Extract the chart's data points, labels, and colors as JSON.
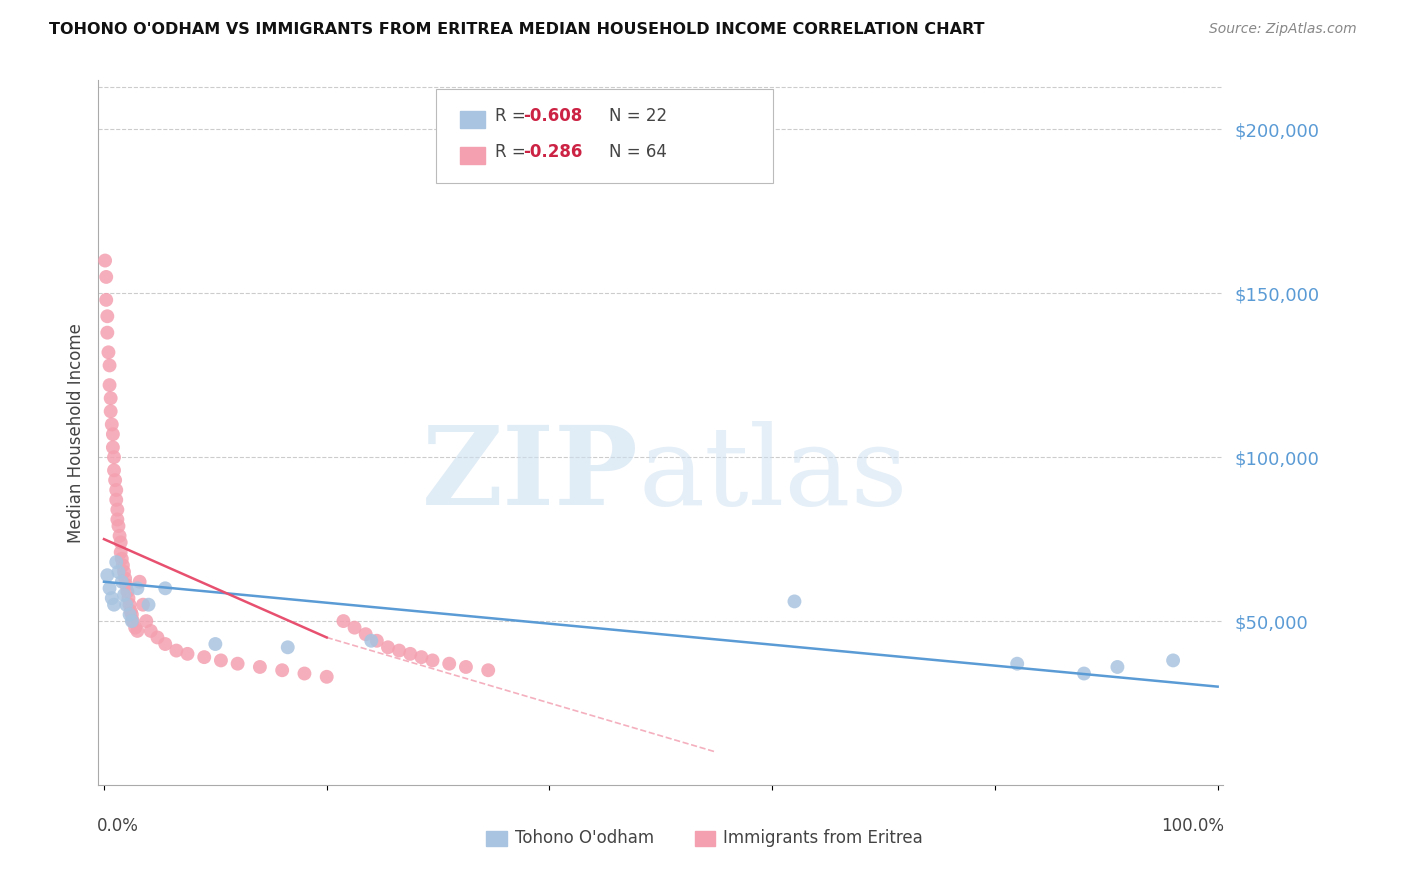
{
  "title": "TOHONO O'ODHAM VS IMMIGRANTS FROM ERITREA MEDIAN HOUSEHOLD INCOME CORRELATION CHART",
  "source": "Source: ZipAtlas.com",
  "ylabel": "Median Household Income",
  "watermark_zip": "ZIP",
  "watermark_atlas": "atlas",
  "series1_label": "Tohono O'odham",
  "series1_color": "#a8c4e0",
  "series1_line_color": "#5b9bd5",
  "series1_R": "-0.608",
  "series1_N": "22",
  "series2_label": "Immigrants from Eritrea",
  "series2_color": "#f4a0b0",
  "series2_line_color": "#e85070",
  "series2_R": "-0.286",
  "series2_N": "64",
  "legend_R_color": "#cc2244",
  "legend_N_color": "#333333",
  "yticks": [
    0,
    50000,
    100000,
    150000,
    200000
  ],
  "ylim": [
    0,
    215000
  ],
  "xlim": [
    -0.005,
    1.005
  ],
  "grid_color": "#cccccc",
  "background_color": "#ffffff",
  "series1_x": [
    0.003,
    0.005,
    0.007,
    0.009,
    0.011,
    0.013,
    0.016,
    0.018,
    0.02,
    0.023,
    0.025,
    0.03,
    0.04,
    0.055,
    0.1,
    0.165,
    0.24,
    0.62,
    0.82,
    0.88,
    0.91,
    0.96
  ],
  "series1_y": [
    64000,
    60000,
    57000,
    55000,
    68000,
    65000,
    62000,
    58000,
    55000,
    52000,
    50000,
    60000,
    55000,
    60000,
    43000,
    42000,
    44000,
    56000,
    37000,
    34000,
    36000,
    38000
  ],
  "series2_x": [
    0.001,
    0.002,
    0.002,
    0.003,
    0.003,
    0.004,
    0.005,
    0.005,
    0.006,
    0.006,
    0.007,
    0.008,
    0.008,
    0.009,
    0.009,
    0.01,
    0.011,
    0.011,
    0.012,
    0.012,
    0.013,
    0.014,
    0.015,
    0.015,
    0.016,
    0.017,
    0.018,
    0.019,
    0.02,
    0.021,
    0.022,
    0.023,
    0.024,
    0.025,
    0.026,
    0.028,
    0.03,
    0.032,
    0.035,
    0.038,
    0.042,
    0.048,
    0.055,
    0.065,
    0.075,
    0.09,
    0.105,
    0.12,
    0.14,
    0.16,
    0.18,
    0.2,
    0.215,
    0.225,
    0.235,
    0.245,
    0.255,
    0.265,
    0.275,
    0.285,
    0.295,
    0.31,
    0.325,
    0.345
  ],
  "series2_y": [
    160000,
    155000,
    148000,
    143000,
    138000,
    132000,
    128000,
    122000,
    118000,
    114000,
    110000,
    107000,
    103000,
    100000,
    96000,
    93000,
    90000,
    87000,
    84000,
    81000,
    79000,
    76000,
    74000,
    71000,
    69000,
    67000,
    65000,
    63000,
    61000,
    59000,
    57000,
    55000,
    53000,
    52000,
    50000,
    48000,
    47000,
    62000,
    55000,
    50000,
    47000,
    45000,
    43000,
    41000,
    40000,
    39000,
    38000,
    37000,
    36000,
    35000,
    34000,
    33000,
    50000,
    48000,
    46000,
    44000,
    42000,
    41000,
    40000,
    39000,
    38000,
    37000,
    36000,
    35000
  ],
  "line1_x0": 0.0,
  "line1_x1": 1.0,
  "line1_y0": 62000,
  "line1_y1": 30000,
  "line2_solid_x0": 0.0,
  "line2_solid_x1": 0.2,
  "line2_dashed_x1": 0.55,
  "line2_y0": 75000,
  "line2_y1_solid": 45000,
  "line2_y1_dashed": 10000
}
